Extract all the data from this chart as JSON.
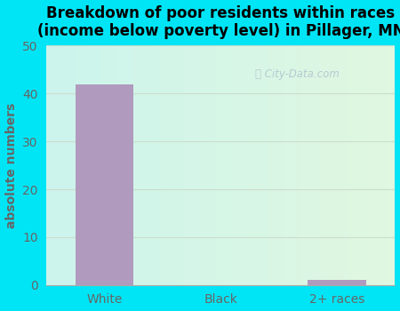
{
  "title": "Breakdown of poor residents within races\n(income below poverty level) in Pillager, MN",
  "categories": [
    "White",
    "Black",
    "2+ races"
  ],
  "values": [
    42,
    0,
    1
  ],
  "bar_color": "#b09abe",
  "ylabel": "absolute numbers",
  "ylim": [
    0,
    50
  ],
  "yticks": [
    0,
    10,
    20,
    30,
    40,
    50
  ],
  "bg_outer_color": "#00e5f5",
  "title_fontsize": 12,
  "label_fontsize": 10,
  "tick_fontsize": 10,
  "tick_color": "#666666",
  "watermark": "City-Data.com",
  "grid_color": "#ccddcc"
}
